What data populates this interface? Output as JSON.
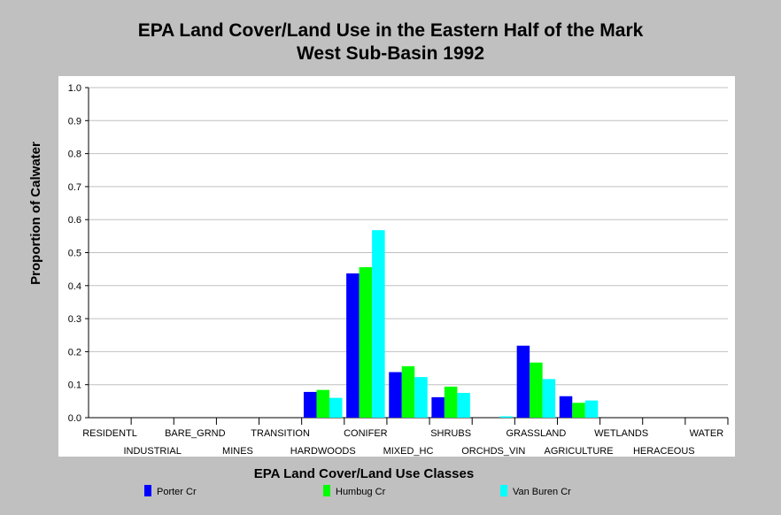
{
  "colors": {
    "background": "#c0c0c0",
    "plot_background": "#ffffff",
    "grid": "#c0c0c0"
  },
  "chart_data": {
    "type": "bar",
    "title_lines": [
      "EPA Land Cover/Land Use in the Eastern Half of the Mark",
      "West Sub-Basin 1992"
    ],
    "xlabel": "EPA Land Cover/Land Use Classes",
    "ylabel": "Proportion of Calwater",
    "ylim": [
      0,
      1.0
    ],
    "yticks": [
      "0.0",
      "0.1",
      "0.2",
      "0.3",
      "0.4",
      "0.5",
      "0.6",
      "0.7",
      "0.8",
      "0.9",
      "1.0"
    ],
    "grid": true,
    "legend_position": "bottom",
    "categories": [
      "RESIDENTL",
      "INDUSTRIAL",
      "BARE_GRND",
      "MINES",
      "TRANSITION",
      "HARDWOODS",
      "CONIFER",
      "MIXED_HC",
      "SHRUBS",
      "ORCHDS_VIN",
      "GRASSLAND",
      "AGRICULTURE",
      "WETLANDS",
      "HERACEOUS",
      "WATER"
    ],
    "series": [
      {
        "name": "Porter Cr",
        "color": "#0000ff",
        "values": [
          0,
          0,
          0,
          0,
          0,
          0.078,
          0.437,
          0.138,
          0.062,
          0,
          0.218,
          0.065,
          0,
          0,
          0
        ]
      },
      {
        "name": "Humbug Cr",
        "color": "#00ff00",
        "values": [
          0,
          0,
          0,
          0,
          0,
          0.084,
          0.456,
          0.156,
          0.094,
          0,
          0.167,
          0.045,
          0,
          0,
          0
        ]
      },
      {
        "name": "Van Buren Cr",
        "color": "#00ffff",
        "values": [
          0,
          0,
          0,
          0,
          0,
          0.06,
          0.568,
          0.123,
          0.075,
          0.004,
          0.117,
          0.052,
          0,
          0,
          0
        ]
      }
    ]
  }
}
